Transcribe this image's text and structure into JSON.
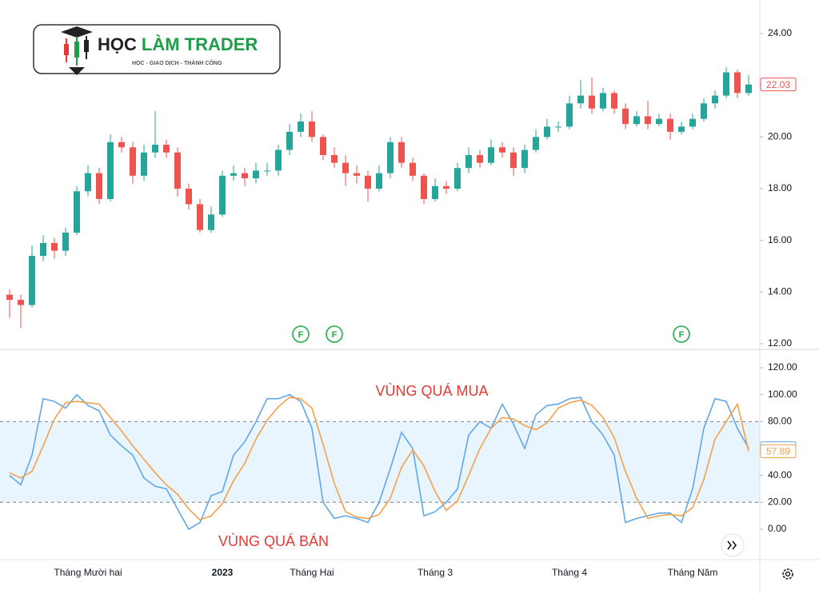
{
  "logo": {
    "title_parts": [
      "HỌC",
      "LÀM TRADER"
    ],
    "tagline": "HỌC - GIAO DỊCH - THÀNH CÔNG"
  },
  "chart_data": [
    {
      "type": "candlestick",
      "categories": [
        null,
        null,
        null,
        null,
        null,
        null,
        null,
        "Tháng Mười hai",
        null,
        null,
        null,
        null,
        null,
        null,
        null,
        null,
        null,
        null,
        null,
        "2023",
        null,
        null,
        null,
        null,
        null,
        null,
        null,
        "Tháng Hai",
        null,
        null,
        null,
        null,
        null,
        null,
        null,
        null,
        null,
        null,
        "Tháng 3",
        null,
        null,
        null,
        null,
        null,
        null,
        null,
        null,
        null,
        null,
        null,
        "Tháng 4",
        null,
        null,
        null,
        null,
        null,
        null,
        null,
        null,
        null,
        null,
        "Tháng Năm",
        null,
        null,
        null,
        null,
        null
      ],
      "open": [
        13.9,
        13.7,
        13.5,
        15.4,
        15.9,
        15.6,
        16.3,
        17.9,
        18.6,
        17.6,
        19.8,
        19.6,
        18.5,
        19.4,
        19.7,
        19.4,
        18.0,
        17.4,
        16.4,
        17.0,
        18.5,
        18.6,
        18.4,
        18.7,
        18.7,
        19.5,
        20.2,
        20.6,
        20.0,
        19.3,
        19.0,
        18.6,
        18.5,
        18.0,
        18.6,
        19.8,
        19.0,
        18.5,
        17.6,
        18.1,
        18.0,
        18.8,
        19.3,
        19.0,
        19.6,
        19.4,
        18.8,
        19.5,
        20.0,
        20.4,
        20.4,
        21.3,
        21.6,
        21.1,
        21.7,
        21.1,
        20.5,
        20.8,
        20.5,
        20.7,
        20.2,
        20.4,
        20.7,
        21.3,
        21.6,
        22.5,
        21.7
      ],
      "high": [
        14.1,
        13.9,
        15.8,
        16.2,
        16.1,
        16.5,
        18.1,
        18.9,
        18.8,
        20.1,
        20.0,
        19.8,
        19.7,
        21.0,
        19.9,
        19.6,
        18.2,
        17.6,
        17.3,
        18.7,
        18.9,
        18.8,
        19.0,
        19.0,
        19.7,
        20.5,
        20.9,
        21.0,
        20.1,
        19.6,
        19.3,
        18.9,
        18.7,
        18.9,
        20.0,
        20.0,
        19.2,
        18.6,
        18.4,
        18.3,
        19.0,
        19.6,
        19.5,
        19.9,
        19.8,
        19.6,
        19.7,
        20.3,
        20.7,
        20.6,
        21.6,
        22.2,
        22.3,
        21.9,
        21.8,
        21.3,
        21.0,
        21.4,
        20.9,
        20.9,
        20.6,
        20.9,
        21.5,
        21.8,
        22.7,
        22.6,
        22.4
      ],
      "low": [
        13.0,
        12.6,
        13.4,
        15.2,
        15.3,
        15.4,
        16.2,
        17.7,
        17.4,
        17.5,
        19.4,
        18.2,
        18.3,
        19.2,
        19.2,
        17.7,
        17.2,
        16.3,
        16.3,
        16.9,
        18.3,
        18.1,
        18.2,
        18.5,
        18.5,
        19.3,
        20.0,
        19.8,
        19.1,
        18.8,
        18.1,
        18.2,
        17.5,
        17.9,
        18.4,
        18.8,
        18.3,
        17.4,
        17.5,
        17.8,
        17.9,
        18.6,
        18.8,
        18.9,
        19.2,
        18.5,
        18.6,
        19.4,
        19.9,
        20.2,
        20.3,
        21.1,
        20.9,
        21.0,
        20.9,
        20.3,
        20.4,
        20.3,
        20.4,
        19.9,
        20.1,
        20.3,
        20.6,
        21.1,
        21.5,
        21.5,
        21.6
      ],
      "close": [
        13.7,
        13.5,
        15.4,
        15.9,
        15.6,
        16.3,
        17.9,
        18.6,
        17.6,
        19.8,
        19.6,
        18.5,
        19.4,
        19.7,
        19.4,
        18.0,
        17.4,
        16.4,
        17.0,
        18.5,
        18.6,
        18.4,
        18.7,
        18.7,
        19.5,
        20.2,
        20.6,
        20.0,
        19.3,
        19.0,
        18.6,
        18.5,
        18.0,
        18.6,
        19.8,
        19.0,
        18.5,
        17.6,
        18.1,
        18.0,
        18.8,
        19.3,
        19.0,
        19.6,
        19.4,
        18.8,
        19.5,
        20.0,
        20.4,
        20.4,
        21.3,
        21.6,
        21.1,
        21.7,
        21.1,
        20.5,
        20.8,
        20.5,
        20.7,
        20.2,
        20.4,
        20.7,
        21.3,
        21.6,
        22.5,
        21.7,
        22.03
      ],
      "up_color": "#26a69a",
      "down_color": "#ef5350",
      "ylim": [
        11.94,
        25.05
      ],
      "yticks": [
        {
          "value": 12,
          "label": "12.00"
        },
        {
          "value": 14,
          "label": "14.00"
        },
        {
          "value": 16,
          "label": "16.00"
        },
        {
          "value": 18,
          "label": "18.00"
        },
        {
          "value": 20,
          "label": "20.00"
        },
        {
          "value": 22,
          "label": "22.00"
        },
        {
          "value": 24,
          "label": "24.00"
        }
      ],
      "events": [
        {
          "at": 26,
          "label": "F"
        },
        {
          "at": 29,
          "label": "F"
        },
        {
          "at": 60,
          "label": "F"
        }
      ]
    },
    {
      "type": "line",
      "series": [
        {
          "name": "%K",
          "color": "#5fa8e8",
          "values": [
            40,
            33,
            55,
            97,
            95,
            90,
            100,
            92,
            88,
            70,
            62,
            55,
            38,
            32,
            30,
            15,
            0,
            5,
            25,
            28,
            55,
            65,
            80,
            97,
            97,
            100,
            95,
            75,
            20,
            8,
            10,
            8,
            5,
            20,
            45,
            72,
            60,
            10,
            13,
            20,
            30,
            70,
            80,
            75,
            93,
            78,
            60,
            85,
            92,
            93,
            97,
            98,
            80,
            70,
            55,
            5,
            8,
            10,
            12,
            12,
            5,
            30,
            75,
            97,
            95,
            75,
            60.19
          ]
        },
        {
          "name": "%D",
          "color": "#f5a04a",
          "values": [
            42,
            38,
            43,
            62,
            82,
            94,
            95,
            94,
            93,
            83,
            73,
            62,
            52,
            42,
            33,
            26,
            15,
            7,
            10,
            19,
            36,
            49,
            67,
            81,
            91,
            98,
            97,
            90,
            63,
            34,
            13,
            9,
            8,
            11,
            23,
            46,
            59,
            47,
            28,
            14,
            21,
            40,
            60,
            75,
            83,
            82,
            77,
            74,
            79,
            90,
            94,
            96,
            92,
            83,
            68,
            43,
            23,
            8,
            10,
            11,
            10,
            16,
            37,
            67,
            80,
            93,
            57.89
          ]
        }
      ],
      "ylim": [
        -22.6,
        131.9
      ],
      "yticks": [
        {
          "value": 0,
          "label": "0.00"
        },
        {
          "value": 20,
          "label": "20.00"
        },
        {
          "value": 40,
          "label": "40.00"
        },
        {
          "value": 60,
          "label": "60.00"
        },
        {
          "value": 80,
          "label": "80.00"
        },
        {
          "value": 100,
          "label": "100.00"
        },
        {
          "value": 120,
          "label": "120.00"
        }
      ],
      "band": [
        20,
        80
      ],
      "band_color": "#2196f3",
      "annotations": [
        "VÙNG QUÁ MUA",
        "VÙNG QUÁ BÁN"
      ],
      "annotation_color": "#e53935"
    }
  ]
}
